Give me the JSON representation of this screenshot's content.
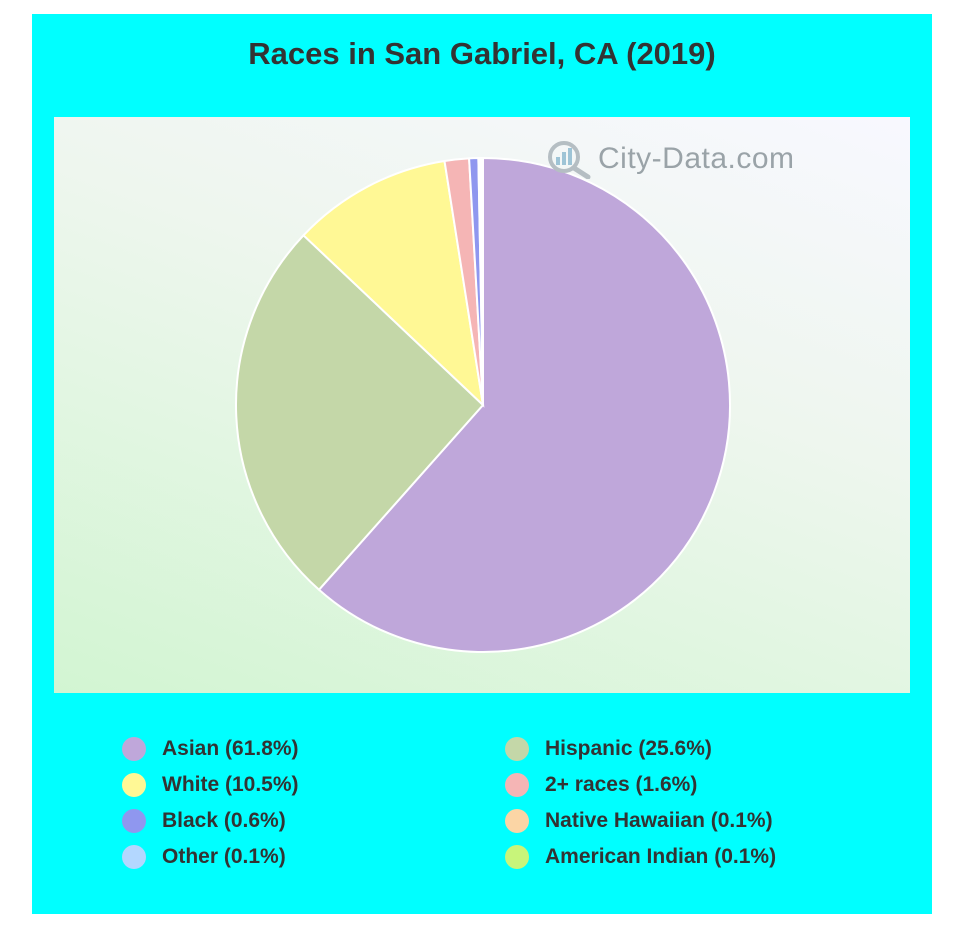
{
  "chart_data": {
    "type": "pie",
    "title": "Races in San Gabriel, CA (2019)",
    "watermark": "City-Data.com",
    "slices": [
      {
        "label": "Asian (61.8%)",
        "value": 61.8,
        "color": "#bfa7da"
      },
      {
        "label": "Hispanic (25.6%)",
        "value": 25.6,
        "color": "#c4d7a8"
      },
      {
        "label": "White (10.5%)",
        "value": 10.5,
        "color": "#fff895"
      },
      {
        "label": "2+ races (1.6%)",
        "value": 1.6,
        "color": "#f5b5b5"
      },
      {
        "label": "Black (0.6%)",
        "value": 0.6,
        "color": "#8f97ef"
      },
      {
        "label": "Native Hawaiian (0.1%)",
        "value": 0.1,
        "color": "#fbd5a5"
      },
      {
        "label": "Other (0.1%)",
        "value": 0.1,
        "color": "#b3d7ff"
      },
      {
        "label": "American Indian (0.1%)",
        "value": 0.1,
        "color": "#c8f57a"
      }
    ],
    "legend": [
      "Asian (61.8%)",
      "Hispanic (25.6%)",
      "White (10.5%)",
      "2+ races (1.6%)",
      "Black (0.6%)",
      "Native Hawaiian (0.1%)",
      "Other (0.1%)",
      "American Indian (0.1%)"
    ],
    "background_color": "#00ffff"
  }
}
